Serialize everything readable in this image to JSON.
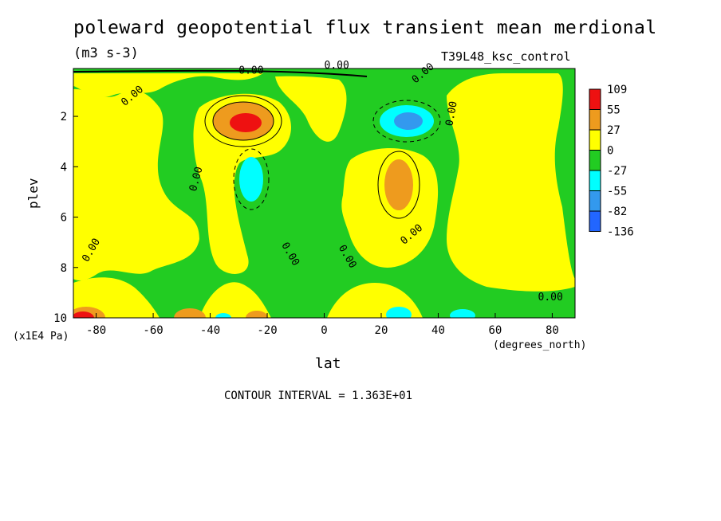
{
  "title": "poleward geopotential flux transient mean merdional",
  "units": "(m3 s-3)",
  "run_label": "T39L48_ksc_control",
  "ylabel": "plev",
  "yunits": "(x1E4 Pa)",
  "xlabel": "lat",
  "xunits": "(degrees_north)",
  "contour_interval": "CONTOUR INTERVAL = 1.363E+01",
  "colors": {
    "red": "#ee1111",
    "orange": "#ee9b1e",
    "yellow": "#ffff00",
    "green": "#22cc22",
    "cyan": "#00ffff",
    "lightblue": "#3399ee",
    "blue": "#2266ff"
  },
  "chart_data": {
    "type": "heatmap",
    "x_ticks": [
      "-80",
      "-60",
      "-40",
      "-20",
      "0",
      "20",
      "40",
      "60",
      "80"
    ],
    "y_ticks": [
      "2",
      "4",
      "6",
      "8",
      "10"
    ],
    "xlim": [
      -88,
      88
    ],
    "ylim": [
      0.1,
      10
    ],
    "y_inverted": true,
    "contour_label": "0.00",
    "colorbar": {
      "labels": [
        "109",
        "55",
        "27",
        "0",
        "-27",
        "-55",
        "-82",
        "-136"
      ],
      "colors": [
        "#ee1111",
        "#ee9b1e",
        "#ffff00",
        "#22cc22",
        "#00ffff",
        "#3399ee",
        "#2266ff"
      ]
    },
    "features": [
      {
        "lat": -27,
        "plev": 2.2,
        "value": 109,
        "sign": "positive max"
      },
      {
        "lat": 30,
        "plev": 2.2,
        "value": -82,
        "sign": "negative min"
      },
      {
        "lat": 28,
        "plev": 4.6,
        "value": 55,
        "sign": "positive max"
      },
      {
        "lat": -25,
        "plev": 4.5,
        "value": -55,
        "sign": "negative min"
      },
      {
        "lat": -85,
        "plev": 9.9,
        "value": 109,
        "sign": "positive max"
      }
    ]
  }
}
